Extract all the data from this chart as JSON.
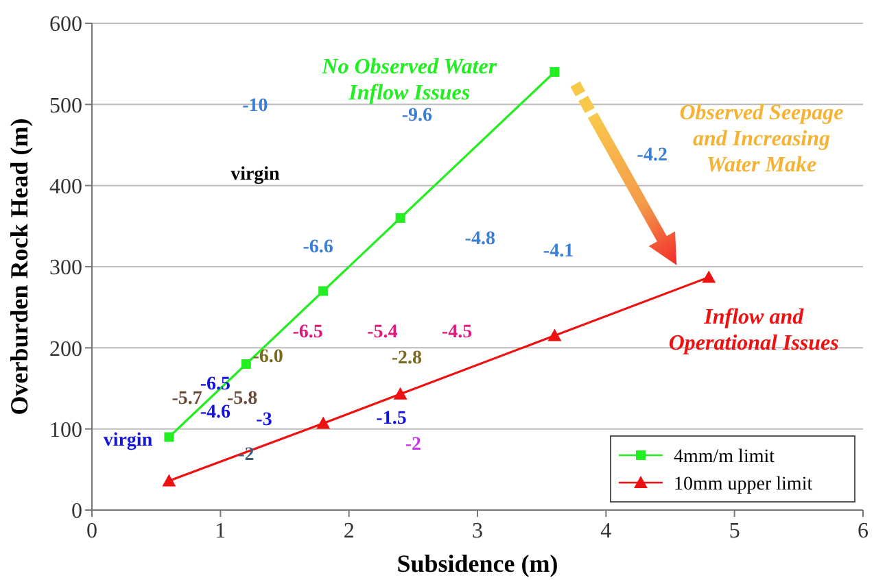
{
  "chart_data": {
    "type": "line",
    "xlabel": "Subsidence (m)",
    "ylabel": "Overburden Rock Head (m)",
    "xlim": [
      0,
      6
    ],
    "xticks": [
      0,
      1,
      2,
      3,
      4,
      5,
      6
    ],
    "ylim": [
      0,
      600
    ],
    "yticks": [
      0,
      100,
      200,
      300,
      400,
      500,
      600
    ],
    "grid": "y",
    "legend": "bottom right",
    "series": [
      {
        "name": "4mm/m limit",
        "color": "#22ee22",
        "marker": "square",
        "x": [
          0.6,
          1.2,
          1.8,
          2.4,
          3.6
        ],
        "values": [
          90,
          180,
          270,
          360,
          540
        ]
      },
      {
        "name": "10mm upper limit",
        "color": "#ee1111",
        "marker": "triangle",
        "x": [
          0.6,
          1.8,
          2.4,
          3.6,
          4.8
        ],
        "values": [
          36,
          107,
          143,
          215,
          287
        ]
      }
    ],
    "annotations": [
      "No Observed Water Inflow Issues",
      "Observed Seepage and Increasing Water Make",
      "Inflow and Operational Issues",
      "-10",
      "-9.6",
      "-6.6",
      "-4.8",
      "-4.1",
      "-4.2",
      "virgin",
      "-6.5",
      "-5.4",
      "-4.5",
      "-6.0",
      "-2.8",
      "-6.5",
      "-4.6",
      "-3",
      "virgin",
      "-1.5",
      "-5.7",
      "-5.8",
      "-2",
      "-2"
    ]
  }
}
